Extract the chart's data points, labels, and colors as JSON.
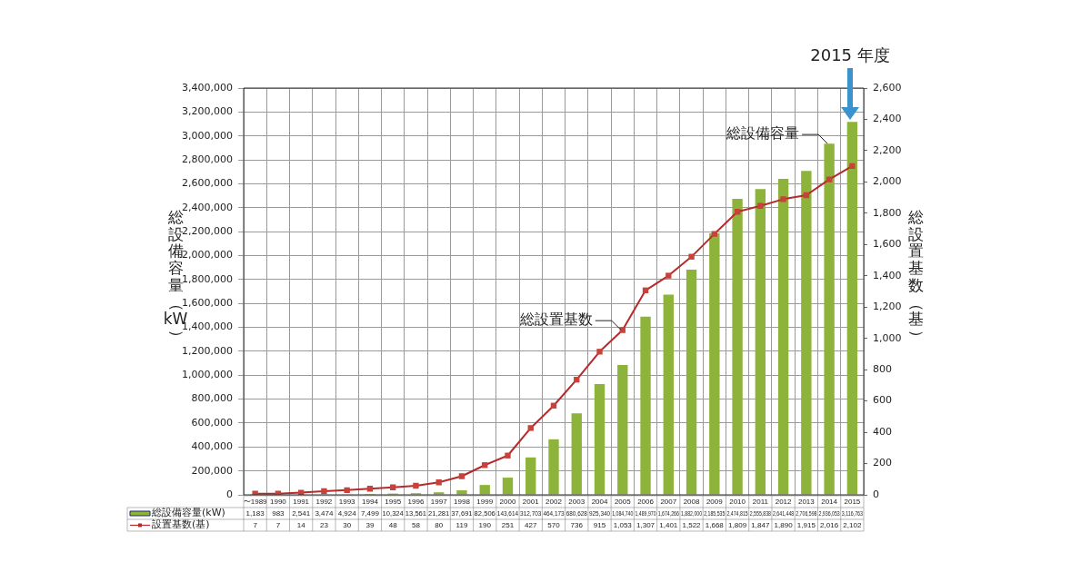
{
  "chart_data": {
    "type": "bar",
    "ylabel": "総設備容量（kW）",
    "y2label": "総設置基数（基）",
    "categories": [
      "〜1989",
      "1990",
      "1991",
      "1992",
      "1993",
      "1994",
      "1995",
      "1996",
      "1997",
      "1998",
      "1999",
      "2000",
      "2001",
      "2002",
      "2003",
      "2004",
      "2005",
      "2006",
      "2007",
      "2008",
      "2009",
      "2010",
      "2011",
      "2012",
      "2013",
      "2014",
      "2015"
    ],
    "series": [
      {
        "name": "総設備容量(kW)",
        "color": "#8db33a",
        "values": [
          1183,
          983,
          2541,
          3474,
          4924,
          7499,
          10324,
          13561,
          21281,
          37691,
          82506,
          143614,
          312703,
          464173,
          680628,
          925340,
          1084740,
          1489970,
          1674266,
          1882000,
          2185535,
          2474815,
          2555838,
          2641448,
          2706598,
          2936053,
          3116763
        ],
        "value_labels": [
          "1,183",
          "983",
          "2,541",
          "3,474",
          "4,924",
          "7,499",
          "10,324",
          "13,561",
          "21,281",
          "37,691",
          "82,506",
          "143,614",
          "312,703",
          "464,173",
          "680,628",
          "925,340",
          "1,084,740",
          "1,489,970",
          "1,674,266",
          "1,882,000",
          "2,185,535",
          "2,474,815",
          "2,555,838",
          "2,641,448",
          "2,706,598",
          "2,936,053",
          "3,116,763"
        ]
      },
      {
        "name": "設置基数(基)",
        "type": "line",
        "axis": "y2",
        "color": "#b52a2a",
        "values": [
          7,
          7,
          14,
          23,
          30,
          39,
          48,
          58,
          80,
          119,
          190,
          251,
          427,
          570,
          736,
          915,
          1053,
          1307,
          1401,
          1522,
          1668,
          1809,
          1847,
          1890,
          1915,
          2016,
          2102
        ],
        "value_labels": [
          "7",
          "7",
          "14",
          "23",
          "30",
          "39",
          "48",
          "58",
          "80",
          "119",
          "190",
          "251",
          "427",
          "570",
          "736",
          "915",
          "1,053",
          "1,307",
          "1,401",
          "1,522",
          "1,668",
          "1,809",
          "1,847",
          "1,890",
          "1,915",
          "2,016",
          "2,102"
        ]
      }
    ],
    "ylim": [
      0,
      3400000
    ],
    "yticks": [
      0,
      {
        "value": 200000,
        "label": "200,000"
      },
      {
        "value": 400000,
        "label": "400,000"
      },
      {
        "value": 600000,
        "label": "600,000"
      },
      {
        "value": 800000,
        "label": "800,000"
      },
      {
        "value": 1000000,
        "label": "1,000,000"
      },
      {
        "value": 1200000,
        "label": "1,200,000"
      },
      {
        "value": 1400000,
        "label": "1,400,000"
      },
      {
        "value": 1600000,
        "label": "1,600,000"
      },
      {
        "value": 1800000,
        "label": "1,800,000"
      },
      {
        "value": 2000000,
        "label": "2,000,000"
      },
      {
        "value": 2200000,
        "label": "2,200,000"
      },
      {
        "value": 2400000,
        "label": "2,400,000"
      },
      {
        "value": 2600000,
        "label": "2,600,000"
      },
      {
        "value": 2800000,
        "label": "2,800,000"
      },
      {
        "value": 3000000,
        "label": "3,000,000"
      },
      {
        "value": 3200000,
        "label": "3,200,000"
      },
      {
        "value": 3400000,
        "label": "3,400,000"
      }
    ],
    "y2lim": [
      0,
      2600
    ],
    "y2ticks": [
      0,
      200,
      400,
      600,
      800,
      {
        "value": 1000,
        "label": "1,000"
      },
      {
        "value": 1200,
        "label": "1,200"
      },
      {
        "value": 1400,
        "label": "1,400"
      },
      {
        "value": 1600,
        "label": "1,600"
      },
      {
        "value": 1800,
        "label": "1,800"
      },
      {
        "value": 2000,
        "label": "2,000"
      },
      {
        "value": 2200,
        "label": "2,200"
      },
      {
        "value": 2400,
        "label": "2,400"
      },
      {
        "value": 2600,
        "label": "2,600"
      }
    ],
    "grid": true,
    "legend": "bottom",
    "marker": "square",
    "line_style": "solid",
    "annotations": [
      "2015 年度",
      {
        "text": "総設備容量",
        "x": "2014",
        "y": 2936053
      },
      {
        "text": "総設置基数",
        "x": "2005",
        "y": 1380000
      }
    ]
  }
}
